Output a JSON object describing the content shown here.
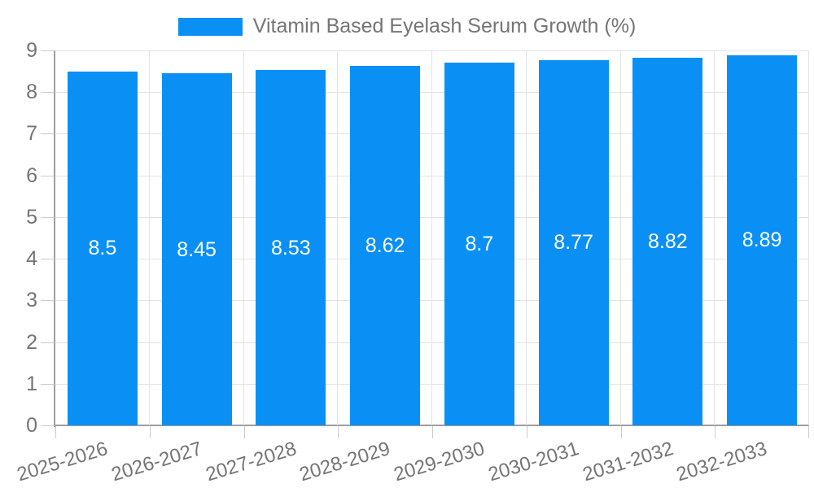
{
  "chart_data": {
    "type": "bar",
    "title": "Vitamin Based Eyelash Serum Growth (%)",
    "legend": {
      "position": "top",
      "label": "Vitamin Based Eyelash Serum Growth (%)"
    },
    "categories": [
      "2025-2026",
      "2026-2027",
      "2027-2028",
      "2028-2029",
      "2029-2030",
      "2030-2031",
      "2031-2032",
      "2032-2033"
    ],
    "series": [
      {
        "name": "Vitamin Based Eyelash Serum Growth (%)",
        "values": [
          8.5,
          8.45,
          8.53,
          8.62,
          8.7,
          8.77,
          8.82,
          8.89
        ],
        "value_labels": [
          "8.5",
          "8.45",
          "8.53",
          "8.62",
          "8.7",
          "8.77",
          "8.82",
          "8.89"
        ]
      }
    ],
    "xlabel": "",
    "ylabel": "",
    "ylim": [
      0,
      9
    ],
    "y_ticks": [
      0,
      1,
      2,
      3,
      4,
      5,
      6,
      7,
      8,
      9
    ],
    "grid": true,
    "value_labels_position": "middle-of-bar",
    "x_tick_rotation_deg": -17,
    "colors": {
      "bar": "#0a90f5",
      "gridline": "#e3e3e3",
      "tick_mark": "#cccccc",
      "axis_line": "#9e9e9e",
      "tick_text": "#757575",
      "legend_text": "#757575",
      "value_label_text": "#ffffff",
      "background": "#ffffff"
    }
  }
}
